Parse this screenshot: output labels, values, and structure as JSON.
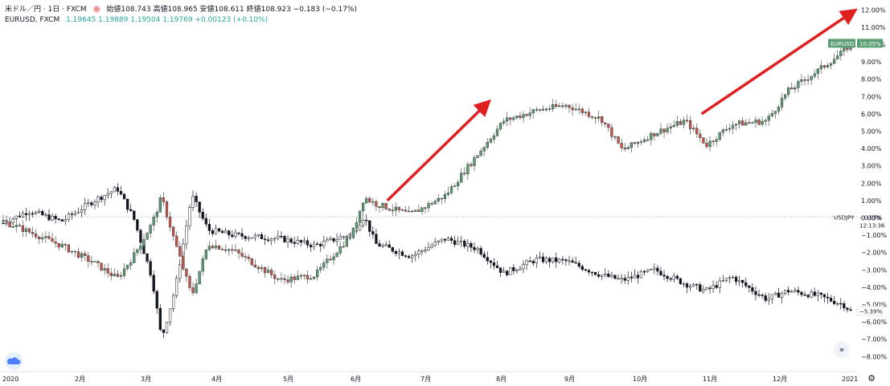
{
  "header": {
    "symbol": "米ドル／円 · 1日 · FXCM",
    "ohlc": "始値108.743 高値108.965 安値108.611 終値108.923 −0.183 (−0.17%)",
    "compare_symbol": "EURUSD, FXCM",
    "compare_values": "1.19645 1.19889 1.19504 1.19769 +0.00123 (+0.10%)"
  },
  "icons": {
    "tv_logo": "tradingview-cloud-icon",
    "scroll": "double-chevron-right-icon",
    "settings": "gear-icon",
    "header_badge": "currency-icon"
  },
  "colors": {
    "up": "#5b9e73",
    "down": "#c8554b",
    "usdjpy": "#131722",
    "arrow": "#e02020",
    "eurusd_tag": "#5b9e73"
  },
  "chart_data": {
    "type": "line",
    "title": "",
    "x": [
      "2020-01-02",
      "2020-01-13",
      "2020-01-27",
      "2020-02-10",
      "2020-02-20",
      "2020-02-27",
      "2020-03-06",
      "2020-03-10",
      "2020-03-16",
      "2020-03-23",
      "2020-03-30",
      "2020-04-10",
      "2020-04-30",
      "2020-05-15",
      "2020-05-31",
      "2020-06-05",
      "2020-06-10",
      "2020-06-25",
      "2020-07-10",
      "2020-07-24",
      "2020-08-04",
      "2020-08-18",
      "2020-08-31",
      "2020-09-15",
      "2020-09-24",
      "2020-10-08",
      "2020-10-21",
      "2020-10-30",
      "2020-11-10",
      "2020-11-25",
      "2020-12-04",
      "2020-12-17",
      "2020-12-28",
      "2020-12-31"
    ],
    "series": [
      {
        "name": "EURUSD",
        "values": [
          -0.2,
          -0.8,
          -1.6,
          -2.6,
          -3.5,
          -2.2,
          -0.3,
          1.2,
          -1.5,
          -4.5,
          -1.5,
          -1.9,
          -3.6,
          -3.3,
          -0.9,
          1.2,
          0.8,
          0.2,
          1.3,
          3.7,
          5.6,
          6.2,
          6.5,
          5.7,
          3.9,
          4.9,
          5.6,
          4.2,
          5.4,
          5.6,
          7.3,
          8.5,
          9.6,
          10.05
        ]
      },
      {
        "name": "USDJPY",
        "values": [
          -0.3,
          0.4,
          -0.2,
          1.0,
          1.7,
          0.0,
          -3.5,
          -7.0,
          -4.0,
          1.3,
          -0.7,
          -1.0,
          -1.2,
          -1.6,
          -0.9,
          0.1,
          -1.5,
          -2.2,
          -1.2,
          -1.8,
          -3.2,
          -2.4,
          -2.5,
          -3.3,
          -3.6,
          -3.0,
          -3.8,
          -4.2,
          -3.4,
          -4.7,
          -4.2,
          -4.5,
          -5.0,
          -5.39
        ]
      }
    ],
    "x_tick_labels": [
      "2020",
      "2月",
      "3月",
      "4月",
      "5月",
      "6月",
      "7月",
      "8月",
      "9月",
      "10月",
      "11月",
      "12月",
      "2021"
    ],
    "y_tick_labels": [
      "12.00%",
      "11.00%",
      "10.00%",
      "9.00%",
      "8.00%",
      "7.00%",
      "6.00%",
      "5.00%",
      "4.00%",
      "3.00%",
      "2.00%",
      "1.00%",
      "0.00%",
      "−1.00%",
      "−2.00%",
      "−3.00%",
      "−4.00%",
      "−5.00%",
      "−6.00%",
      "−7.00%",
      "−8.00%"
    ],
    "ylim": [
      -8.5,
      12.5
    ],
    "grid": false,
    "baseline": {
      "label": "USDJPY",
      "value": "0.05%",
      "countdown": "12:13:36"
    },
    "last_value_tags": {
      "eurusd_name": "EURUSD",
      "eurusd_value": "10.05%",
      "usdjpy_value": "−5.39%"
    },
    "annotations": [
      {
        "type": "arrow",
        "from": [
          "2020-06-15",
          1.0
        ],
        "to": [
          "2020-07-27",
          6.5
        ]
      },
      {
        "type": "arrow",
        "from": [
          "2020-10-28",
          6.0
        ],
        "to": [
          "2020-12-31",
          11.8
        ]
      }
    ]
  }
}
